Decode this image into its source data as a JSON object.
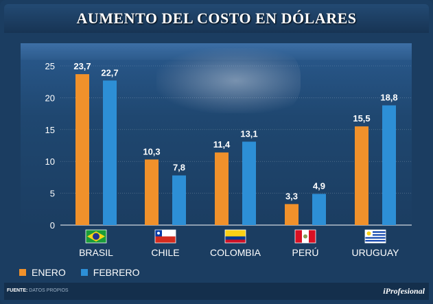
{
  "colors": {
    "enero": "#f0912b",
    "febrero": "#2d8fd6",
    "axis_text": "#ffffff"
  },
  "legend": {
    "enero_label": "ENERO",
    "febrero_label": "FEBRERO"
  },
  "footer": {
    "source_label": "FUENTE:",
    "source_value": "DATOS PROPIOS",
    "brand": "iProfesional"
  },
  "chart_data": {
    "type": "bar",
    "title": "AUMENTO DEL COSTO EN DÓLARES",
    "categories": [
      "BRASIL",
      "CHILE",
      "COLOMBIA",
      "PERÚ",
      "URUGUAY"
    ],
    "flags": [
      "brazil-flag",
      "chile-flag",
      "colombia-flag",
      "peru-flag",
      "uruguay-flag"
    ],
    "series": [
      {
        "name": "ENERO",
        "values": [
          23.7,
          10.3,
          11.4,
          3.3,
          15.5
        ],
        "labels": [
          "23,7",
          "10,3",
          "11,4",
          "3,3",
          "15,5"
        ]
      },
      {
        "name": "FEBRERO",
        "values": [
          22.7,
          7.8,
          13.1,
          4.9,
          18.8
        ],
        "labels": [
          "22,7",
          "7,8",
          "13,1",
          "4,9",
          "18,8"
        ]
      }
    ],
    "ylim": [
      0,
      25
    ],
    "yticks": [
      0,
      5,
      10,
      15,
      20,
      25
    ],
    "ytick_labels": [
      "0",
      "5",
      "10",
      "15",
      "20",
      "25"
    ],
    "grid": true,
    "legend_position": "bottom-left"
  }
}
